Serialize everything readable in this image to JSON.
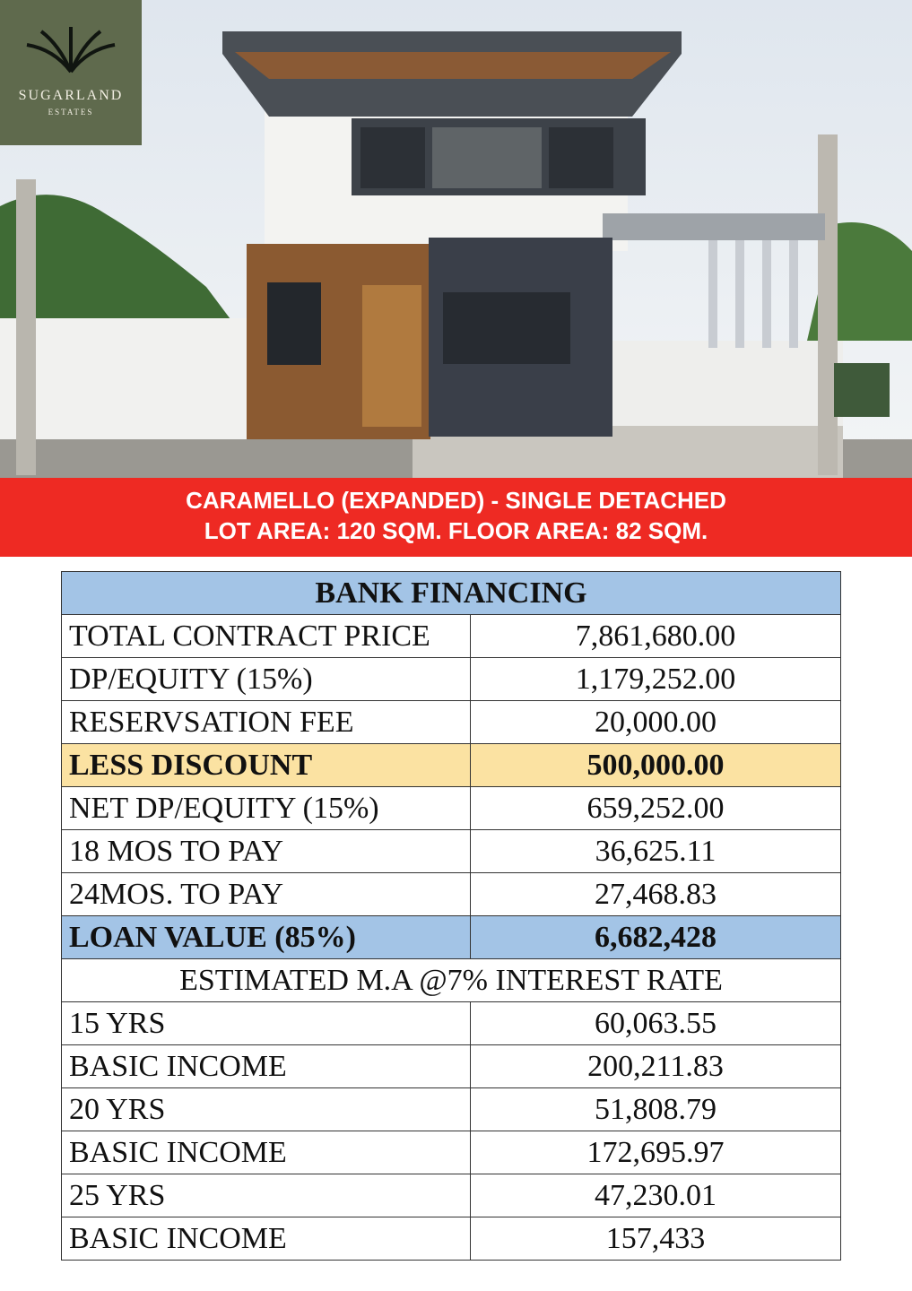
{
  "logo": {
    "name": "SUGARLAND",
    "sub": "ESTATES"
  },
  "banner": {
    "line1": "CARAMELLO (EXPANDED) - SINGLE DETACHED",
    "line2": "LOT AREA: 120 SQM. FLOOR AREA: 82 SQM."
  },
  "table": {
    "title": "BANK FINANCING",
    "rows": [
      [
        "TOTAL CONTRACT PRICE",
        "7,861,680.00"
      ],
      [
        "DP/EQUITY (15%)",
        "1,179,252.00"
      ],
      [
        "RESERVSATION FEE",
        "20,000.00"
      ],
      [
        "LESS DISCOUNT",
        "500,000.00"
      ],
      [
        "NET DP/EQUITY (15%)",
        "659,252.00"
      ],
      [
        "18 MOS TO PAY",
        "36,625.11"
      ],
      [
        "24MOS. TO PAY",
        "27,468.83"
      ],
      [
        "LOAN VALUE (85%)",
        "6,682,428"
      ]
    ],
    "subtitle": "ESTIMATED M.A @7% INTEREST RATE",
    "ma_rows": [
      [
        "15 YRS",
        "60,063.55"
      ],
      [
        "BASIC INCOME",
        "200,211.83"
      ],
      [
        "20 YRS",
        "51,808.79"
      ],
      [
        "BASIC INCOME",
        "172,695.97"
      ],
      [
        "25 YRS",
        "47,230.01"
      ],
      [
        "BASIC INCOME",
        "157,433"
      ]
    ]
  }
}
